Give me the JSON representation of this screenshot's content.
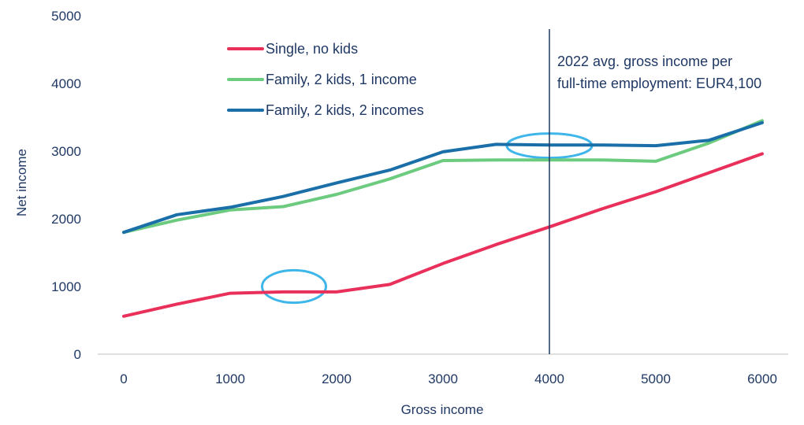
{
  "chart_data": {
    "type": "line",
    "xlabel": "Gross income",
    "ylabel": "Net income",
    "xlim": [
      0,
      6000
    ],
    "ylim": [
      0,
      5000
    ],
    "x_ticks": [
      0,
      1000,
      2000,
      3000,
      4000,
      5000,
      6000
    ],
    "y_ticks": [
      0,
      1000,
      2000,
      3000,
      4000,
      5000
    ],
    "x_tick_labels": [
      "0",
      "1000",
      "2000",
      "3000",
      "4000",
      "5000",
      "6000"
    ],
    "y_tick_labels": [
      "0",
      "1000",
      "2000",
      "3000",
      "4000",
      "5000"
    ],
    "grid": false,
    "legend_position": "top-left",
    "x": [
      0,
      500,
      1000,
      1500,
      2000,
      2500,
      3000,
      3500,
      4000,
      4500,
      5000,
      5500,
      6000
    ],
    "series": [
      {
        "name": "Single, no kids",
        "color": "#e8305a",
        "values": [
          560,
          740,
          900,
          920,
          920,
          1030,
          1340,
          1620,
          1880,
          2150,
          2400,
          2680,
          2960
        ]
      },
      {
        "name": "Family, 2 kids, 1 income",
        "color": "#6ccb7f",
        "values": [
          1800,
          1980,
          2130,
          2180,
          2360,
          2590,
          2860,
          2870,
          2870,
          2870,
          2850,
          3120,
          3450
        ]
      },
      {
        "name": "Family, 2 kids, 2 incomes",
        "color": "#1a6fa8",
        "values": [
          1800,
          2060,
          2170,
          2330,
          2530,
          2720,
          2990,
          3100,
          3090,
          3090,
          3080,
          3160,
          3420
        ]
      }
    ],
    "reference_line": {
      "x": 4000,
      "color": "#1f3864",
      "label_lines": [
        "2022 avg. gross income per",
        "full-time employment: EUR4,100"
      ]
    },
    "highlights": [
      {
        "color": "#3fb6ea",
        "center": [
          1600,
          1000
        ],
        "rx": 600,
        "ry": 480
      },
      {
        "color": "#3fb6ea",
        "center": [
          4000,
          3080
        ],
        "rx": 800,
        "ry": 360
      }
    ]
  }
}
